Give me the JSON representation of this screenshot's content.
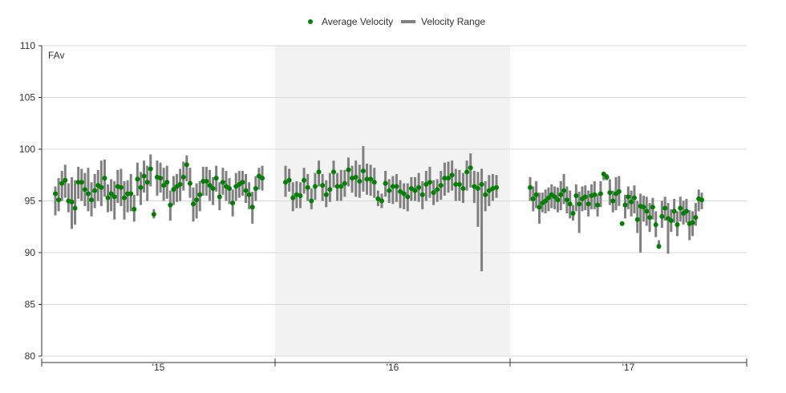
{
  "chart_data": {
    "type": "scatter",
    "title": "",
    "annotation": "FAv",
    "xlabel": "",
    "ylabel": "",
    "ylim": [
      80,
      110
    ],
    "yticks": [
      80,
      85,
      90,
      95,
      100,
      105,
      110
    ],
    "x_tick_labels": [
      "'15",
      "'16",
      "'17"
    ],
    "grid": true,
    "legend_position": "top-center",
    "legend": [
      {
        "name": "Average Velocity",
        "color": "#008000",
        "marker": "dot"
      },
      {
        "name": "Velocity Range",
        "color": "#808080",
        "marker": "bar"
      }
    ],
    "colors": {
      "average": "#008000",
      "range": "#808080",
      "highlight_band": "#f2f2f2",
      "grid": "#d9d9d9"
    },
    "season_2015": [
      [
        95.7,
        93.6,
        96.4
      ],
      [
        95.1,
        94.0,
        97.2
      ],
      [
        96.7,
        95.0,
        97.9
      ],
      [
        97.0,
        95.3,
        98.5
      ],
      [
        95.0,
        93.9,
        96.7
      ],
      [
        94.9,
        92.3,
        97.3
      ],
      [
        94.3,
        92.7,
        97.0
      ],
      [
        96.8,
        95.2,
        98.3
      ],
      [
        96.8,
        95.0,
        98.1
      ],
      [
        96.1,
        94.5,
        97.7
      ],
      [
        95.7,
        94.0,
        98.2
      ],
      [
        95.1,
        93.5,
        96.8
      ],
      [
        96.0,
        94.3,
        97.6
      ],
      [
        96.5,
        95.0,
        98.0
      ],
      [
        96.3,
        94.5,
        98.9
      ],
      [
        97.2,
        95.4,
        99.0
      ],
      [
        95.3,
        93.9,
        96.6
      ],
      [
        95.7,
        94.0,
        97.1
      ],
      [
        95.4,
        93.2,
        96.9
      ],
      [
        96.4,
        94.8,
        98.0
      ],
      [
        96.3,
        94.5,
        98.1
      ],
      [
        95.3,
        93.2,
        96.9
      ],
      [
        95.7,
        93.9,
        97.0
      ],
      [
        95.7,
        94.0,
        97.6
      ],
      [
        94.2,
        93.0,
        95.6
      ],
      [
        97.1,
        95.5,
        98.7
      ],
      [
        96.3,
        94.6,
        97.8
      ],
      [
        97.4,
        95.8,
        98.9
      ],
      [
        96.8,
        95.0,
        98.4
      ],
      [
        98.1,
        96.4,
        99.5
      ],
      [
        93.7,
        93.3,
        94.2
      ],
      [
        97.3,
        95.5,
        98.9
      ],
      [
        97.2,
        95.8,
        98.7
      ],
      [
        96.5,
        95.0,
        98.2
      ],
      [
        96.8,
        95.2,
        98.4
      ],
      [
        94.6,
        93.1,
        96.0
      ],
      [
        96.1,
        94.6,
        97.4
      ],
      [
        96.4,
        94.9,
        97.6
      ],
      [
        96.6,
        95.0,
        98.1
      ],
      [
        97.3,
        96.0,
        98.8
      ],
      [
        98.5,
        96.9,
        99.4
      ],
      [
        96.7,
        95.3,
        98.2
      ],
      [
        94.7,
        93.0,
        96.3
      ],
      [
        95.1,
        93.3,
        96.7
      ],
      [
        95.6,
        94.0,
        96.9
      ],
      [
        96.9,
        95.5,
        98.3
      ],
      [
        96.9,
        95.5,
        98.3
      ],
      [
        96.5,
        95.0,
        98.0
      ],
      [
        96.2,
        94.6,
        97.3
      ],
      [
        97.2,
        95.9,
        98.4
      ],
      [
        95.4,
        94.1,
        96.8
      ],
      [
        96.8,
        95.6,
        98.2
      ],
      [
        96.4,
        95.0,
        97.9
      ],
      [
        96.2,
        94.7,
        97.2
      ],
      [
        94.8,
        93.5,
        96.1
      ],
      [
        96.4,
        95.0,
        97.7
      ],
      [
        96.6,
        95.3,
        97.9
      ],
      [
        96.8,
        95.5,
        97.9
      ],
      [
        96.0,
        94.8,
        97.6
      ],
      [
        95.6,
        94.2,
        96.8
      ],
      [
        94.4,
        92.8,
        95.9
      ],
      [
        96.2,
        95.0,
        97.4
      ],
      [
        97.4,
        96.1,
        98.2
      ],
      [
        97.2,
        96.0,
        98.4
      ]
    ],
    "season_2016": [
      [
        96.8,
        95.4,
        98.4
      ],
      [
        97.0,
        95.9,
        98.1
      ],
      [
        95.3,
        94.0,
        96.8
      ],
      [
        95.6,
        94.3,
        96.9
      ],
      [
        95.5,
        94.3,
        96.8
      ],
      [
        97.0,
        95.7,
        98.2
      ],
      [
        96.3,
        95.0,
        97.6
      ],
      [
        95.0,
        94.2,
        96.2
      ],
      [
        96.4,
        95.1,
        97.7
      ],
      [
        97.8,
        96.4,
        98.9
      ],
      [
        96.5,
        95.0,
        97.6
      ],
      [
        95.6,
        94.4,
        97.0
      ],
      [
        96.1,
        94.9,
        97.7
      ],
      [
        97.8,
        96.3,
        98.9
      ],
      [
        96.4,
        95.0,
        97.7
      ],
      [
        96.4,
        95.0,
        98.0
      ],
      [
        96.7,
        95.4,
        98.0
      ],
      [
        98.0,
        96.4,
        99.2
      ],
      [
        97.2,
        95.8,
        98.4
      ],
      [
        97.3,
        95.4,
        98.9
      ],
      [
        96.9,
        95.3,
        98.5
      ],
      [
        97.9,
        95.9,
        100.3
      ],
      [
        97.1,
        95.6,
        98.6
      ],
      [
        97.1,
        95.5,
        98.5
      ],
      [
        96.8,
        95.3,
        98.2
      ],
      [
        95.2,
        94.5,
        96.0
      ],
      [
        95.0,
        94.3,
        95.7
      ],
      [
        96.7,
        95.4,
        97.9
      ],
      [
        96.0,
        94.8,
        97.1
      ],
      [
        96.4,
        94.7,
        97.4
      ],
      [
        96.4,
        94.9,
        97.6
      ],
      [
        95.9,
        94.3,
        97.0
      ],
      [
        95.7,
        94.2,
        96.7
      ],
      [
        95.4,
        94.0,
        96.7
      ],
      [
        96.2,
        95.0,
        97.3
      ],
      [
        96.0,
        95.0,
        97.3
      ],
      [
        96.3,
        94.9,
        97.7
      ],
      [
        95.6,
        94.2,
        96.9
      ],
      [
        96.6,
        95.0,
        97.9
      ],
      [
        96.8,
        95.3,
        98.3
      ],
      [
        95.8,
        94.6,
        97.0
      ],
      [
        96.1,
        94.9,
        97.1
      ],
      [
        96.5,
        95.1,
        97.9
      ],
      [
        97.2,
        95.5,
        98.7
      ],
      [
        97.2,
        95.8,
        98.8
      ],
      [
        97.5,
        96.0,
        98.9
      ],
      [
        96.6,
        95.0,
        98.1
      ],
      [
        96.6,
        95.0,
        98.0
      ],
      [
        96.2,
        94.8,
        97.7
      ],
      [
        97.8,
        96.0,
        98.9
      ],
      [
        98.2,
        96.3,
        99.6
      ],
      [
        96.4,
        94.8,
        97.9
      ],
      [
        96.2,
        92.5,
        97.8
      ],
      [
        96.6,
        88.2,
        98.1
      ],
      [
        95.6,
        94.0,
        96.9
      ],
      [
        96.0,
        94.5,
        97.5
      ],
      [
        96.2,
        95.0,
        97.6
      ],
      [
        96.3,
        95.3,
        97.5
      ]
    ],
    "season_2017": [
      [
        96.3,
        95.0,
        97.3
      ],
      [
        95.2,
        94.0,
        96.4
      ],
      [
        95.6,
        94.3,
        96.9
      ],
      [
        94.4,
        92.8,
        95.8
      ],
      [
        94.8,
        93.9,
        95.8
      ],
      [
        95.0,
        93.8,
        96.1
      ],
      [
        95.3,
        94.0,
        96.3
      ],
      [
        95.6,
        94.3,
        96.6
      ],
      [
        95.4,
        94.2,
        96.4
      ],
      [
        95.1,
        93.9,
        96.3
      ],
      [
        95.6,
        94.1,
        96.9
      ],
      [
        96.0,
        94.7,
        97.6
      ],
      [
        95.1,
        93.8,
        96.4
      ],
      [
        94.7,
        93.3,
        96.0
      ],
      [
        93.8,
        93.1,
        94.6
      ],
      [
        95.5,
        94.0,
        96.6
      ],
      [
        94.7,
        91.9,
        95.9
      ],
      [
        95.2,
        94.0,
        96.4
      ],
      [
        95.4,
        94.1,
        96.5
      ],
      [
        94.7,
        93.5,
        96.0
      ],
      [
        95.5,
        94.2,
        96.6
      ],
      [
        95.6,
        94.2,
        96.9
      ],
      [
        94.6,
        93.5,
        95.7
      ],
      [
        95.7,
        94.4,
        96.9
      ],
      [
        97.6,
        97.0,
        97.8
      ],
      [
        97.3,
        97.0,
        97.6
      ],
      [
        95.8,
        94.6,
        97.1
      ],
      [
        95.0,
        93.9,
        96.0
      ],
      [
        95.7,
        94.1,
        97.3
      ],
      [
        95.9,
        94.5,
        97.4
      ],
      [
        92.8,
        92.6,
        93.0
      ],
      [
        94.6,
        93.3,
        95.6
      ],
      [
        95.4,
        94.2,
        96.4
      ],
      [
        94.9,
        93.5,
        96.0
      ],
      [
        95.3,
        93.8,
        96.5
      ],
      [
        93.2,
        91.9,
        95.0
      ],
      [
        94.5,
        90.0,
        95.7
      ],
      [
        94.4,
        93.0,
        95.5
      ],
      [
        94.0,
        92.6,
        95.4
      ],
      [
        93.4,
        92.0,
        94.8
      ],
      [
        94.4,
        93.2,
        95.3
      ],
      [
        92.7,
        91.5,
        94.0
      ],
      [
        90.6,
        90.4,
        91.2
      ],
      [
        93.5,
        92.4,
        95.0
      ],
      [
        94.3,
        93.1,
        95.4
      ],
      [
        93.3,
        89.9,
        94.8
      ],
      [
        93.1,
        92.0,
        94.2
      ],
      [
        94.0,
        92.9,
        95.2
      ],
      [
        92.7,
        91.6,
        94.0
      ],
      [
        94.3,
        93.0,
        95.4
      ],
      [
        93.8,
        92.7,
        95.0
      ],
      [
        94.0,
        92.9,
        95.2
      ],
      [
        92.8,
        91.2,
        94.1
      ],
      [
        92.9,
        91.6,
        94.0
      ],
      [
        93.4,
        92.6,
        94.8
      ],
      [
        95.2,
        94.0,
        96.1
      ],
      [
        95.1,
        94.2,
        95.8
      ]
    ]
  }
}
